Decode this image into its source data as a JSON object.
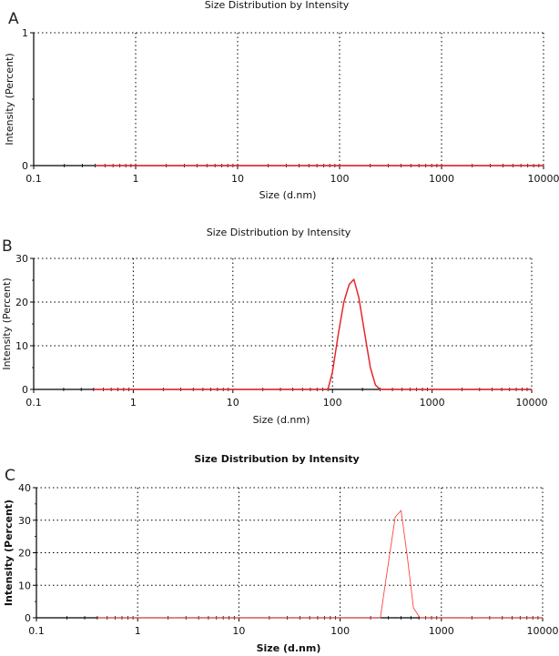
{
  "chart_data": [
    {
      "panel": "A",
      "type": "line",
      "title": "Size Distribution by Intensity",
      "xlabel": "Size (d.nm)",
      "ylabel": "Intensity (Percent)",
      "x_scale": "log",
      "xlim": [
        0.1,
        10000
      ],
      "ylim": [
        0,
        1
      ],
      "x_ticks": [
        0.1,
        1,
        10,
        100,
        1000,
        10000
      ],
      "x_tick_labels": [
        "0.1",
        "1",
        "10",
        "100",
        "1000",
        "10000"
      ],
      "y_ticks": [
        0,
        1
      ],
      "y_tick_labels": [
        "0",
        "1"
      ],
      "grid": "dotted",
      "series": [
        {
          "name": "Intensity",
          "color": "#e8262a",
          "x": [
            0.4,
            10000
          ],
          "y": [
            0,
            0
          ]
        }
      ]
    },
    {
      "panel": "B",
      "type": "line",
      "title": "Size Distribution by Intensity",
      "xlabel": "Size (d.nm)",
      "ylabel": "Intensity (Percent)",
      "x_scale": "log",
      "xlim": [
        0.1,
        10000
      ],
      "ylim": [
        0,
        30
      ],
      "x_ticks": [
        0.1,
        1,
        10,
        100,
        1000,
        10000
      ],
      "x_tick_labels": [
        "0.1",
        "1",
        "10",
        "100",
        "1000",
        "10000"
      ],
      "y_ticks": [
        0,
        10,
        20,
        30
      ],
      "y_tick_labels": [
        "0",
        "10",
        "20",
        "30"
      ],
      "grid": "dotted",
      "series": [
        {
          "name": "Intensity",
          "color": "#e8262a",
          "x": [
            0.4,
            90,
            100,
            115,
            130,
            147,
            164,
            184,
            210,
            240,
            270,
            300,
            10000
          ],
          "y": [
            0,
            0,
            4,
            13,
            20,
            24,
            25.2,
            21,
            13,
            5,
            1,
            0,
            0
          ]
        }
      ]
    },
    {
      "panel": "C",
      "type": "line",
      "title": "Size Distribution by Intensity",
      "xlabel": "Size (d.nm)",
      "ylabel": "Intensity (Percent)",
      "x_scale": "log",
      "xlim": [
        0.1,
        10000
      ],
      "ylim": [
        0,
        40
      ],
      "x_ticks": [
        0.1,
        1,
        10,
        100,
        1000,
        10000
      ],
      "x_tick_labels": [
        "0.1",
        "1",
        "10",
        "100",
        "1000",
        "10000"
      ],
      "y_ticks": [
        0,
        10,
        20,
        30,
        40
      ],
      "y_tick_labels": [
        "0",
        "10",
        "20",
        "30",
        "40"
      ],
      "grid": "dotted",
      "series": [
        {
          "name": "Intensity",
          "color": "#ff4444",
          "x": [
            0.4,
            250,
            275,
            350,
            400,
            460,
            530,
            615,
            10000
          ],
          "y": [
            0,
            0,
            9,
            31,
            33,
            19,
            3,
            0,
            0
          ]
        }
      ]
    }
  ]
}
